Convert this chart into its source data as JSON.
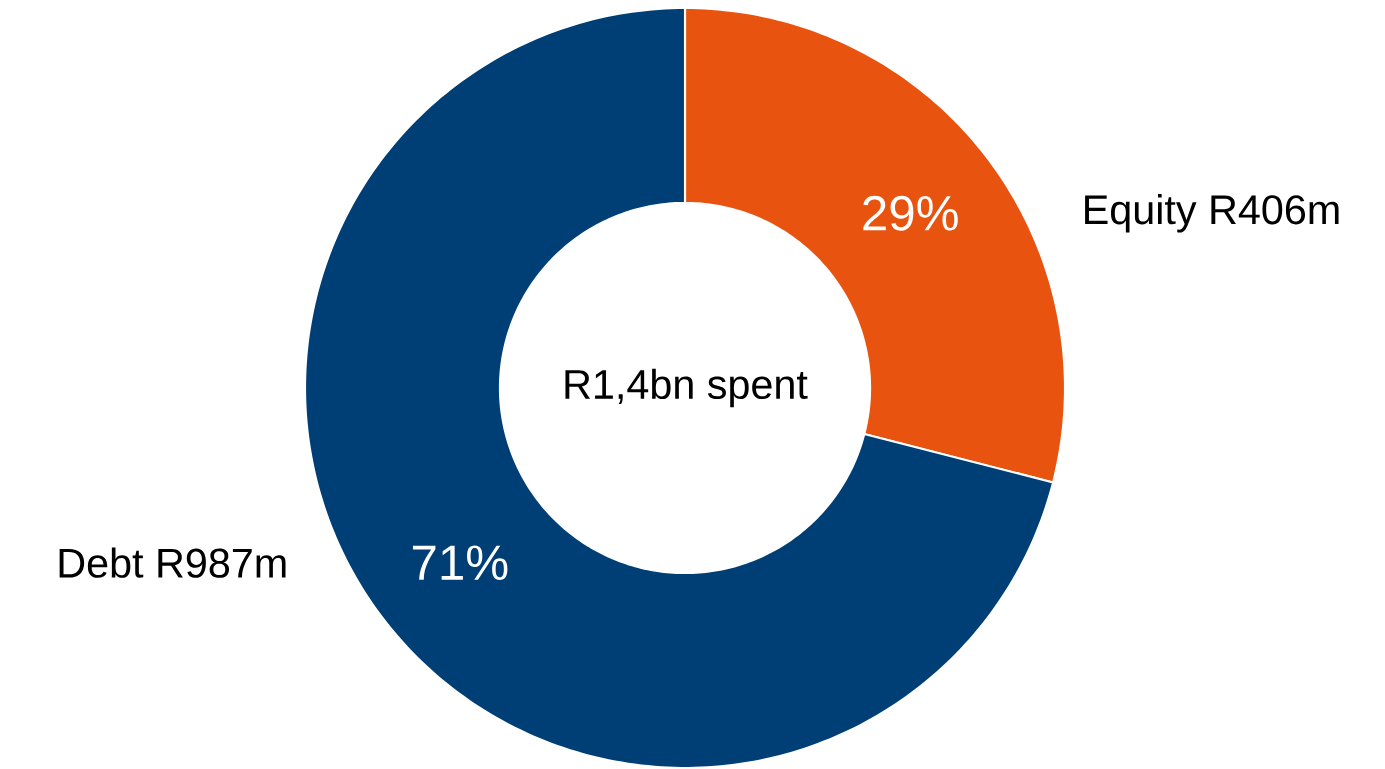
{
  "chart_data": {
    "type": "donut",
    "categories": [
      "Equity R406m",
      "Debt R987m"
    ],
    "values": [
      29,
      71
    ],
    "colors": [
      "#e8540f",
      "#003f75"
    ],
    "value_labels": [
      "29%",
      "71%"
    ],
    "annotations": [
      "R1,4bn spent"
    ]
  }
}
